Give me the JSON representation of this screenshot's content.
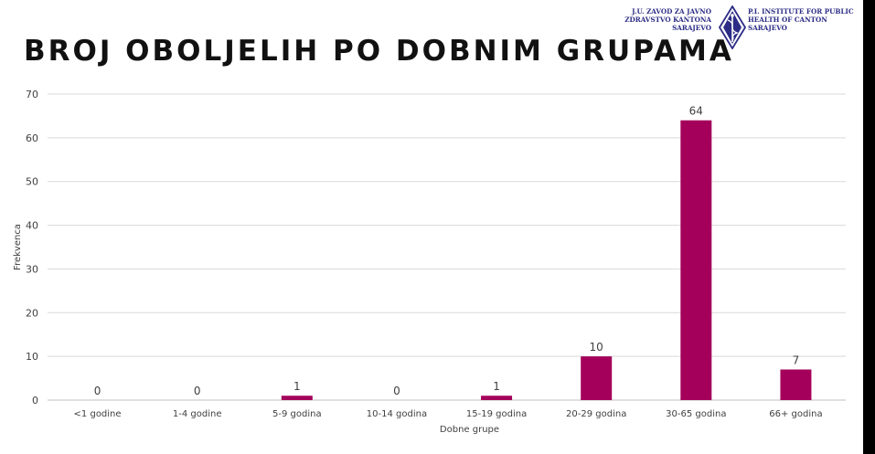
{
  "slide": {
    "title": "BROJ OBOLJELIH PO DOBNIM GRUPAMA"
  },
  "logo": {
    "left_lines": [
      "J.U. ZAVOD ZA JAVNO",
      "ZDRAVSTVO KANTONA",
      "SARAJEVO"
    ],
    "right_lines": [
      "P.I. INSTITUTE FOR PUBLIC",
      "HEALTH OF CANTON",
      "SARAJEVO"
    ],
    "emblem_icon": "caduceus-diamond-icon",
    "color": "#2c2c86"
  },
  "chart_data": {
    "type": "bar",
    "categories": [
      "<1 godine",
      "1-4 godine",
      "5-9 godina",
      "10-14 godina",
      "15-19 godina",
      "20-29 godina",
      "30-65 godina",
      "66+ godina"
    ],
    "values": [
      0,
      0,
      1,
      0,
      1,
      10,
      64,
      7
    ],
    "xlabel": "Dobne grupe",
    "ylabel": "Frekvenca",
    "ylim": [
      0,
      70
    ],
    "yticks": [
      0,
      10,
      20,
      30,
      40,
      50,
      60,
      70
    ],
    "grid": true,
    "data_labels": true,
    "bar_color": "#a4005b"
  }
}
